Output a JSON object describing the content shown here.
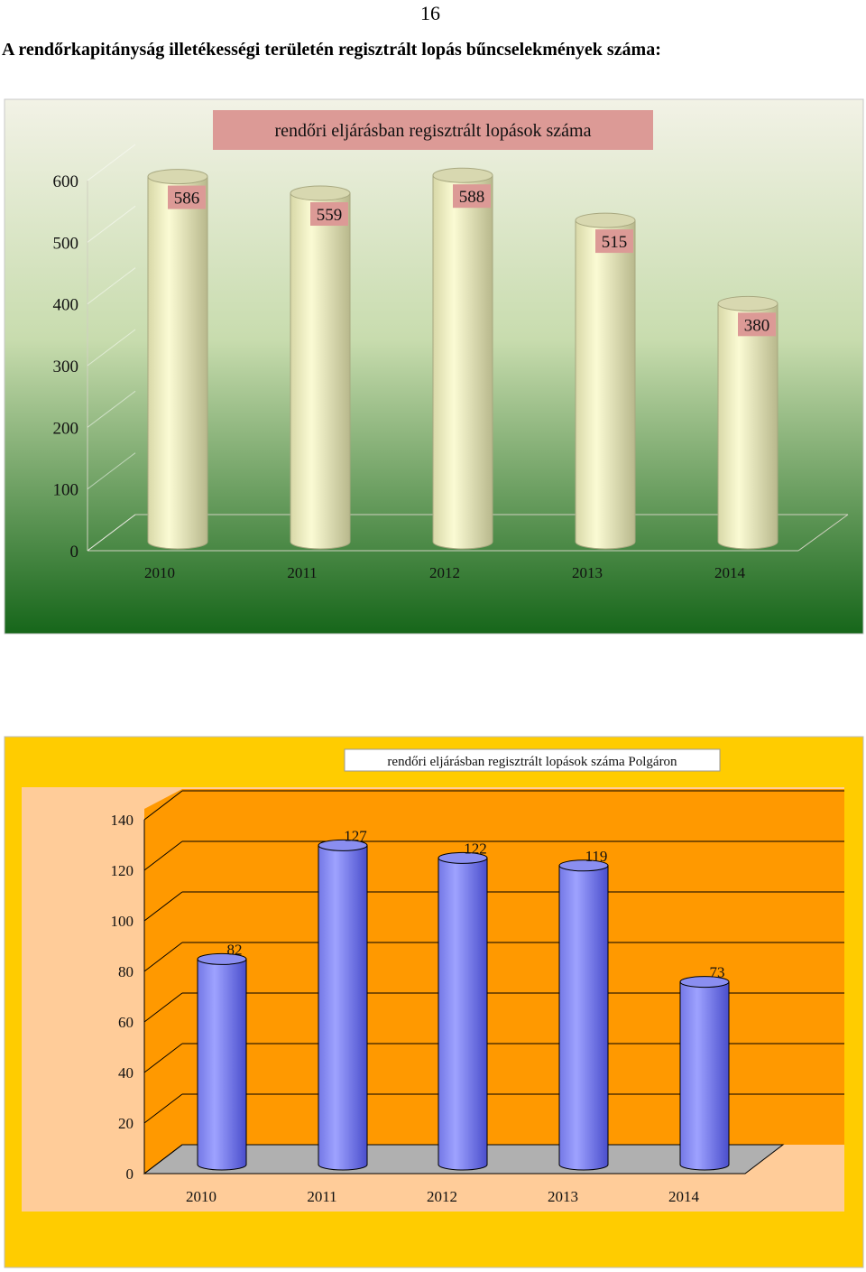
{
  "page": {
    "number": "16",
    "heading": "A rendőrkapitányság illetékességi területén regisztrált lopás bűncselekmények száma:"
  },
  "colors": {
    "chart1_bg_top": "#f2f2e6",
    "chart1_bg_bottom": "#16661a",
    "chart1_bar_light": "#fbfbd4",
    "chart1_bar_dark": "#b8b88c",
    "chart1_label_bg": "#dc9a96",
    "chart2_outer": "#ffcc00",
    "chart2_plot": "#ff9900",
    "chart2_wall_light": "#ffcc99",
    "chart2_bar_light": "#9ea2ff",
    "chart2_bar_dark": "#4a4ecc"
  },
  "chart_data": [
    {
      "type": "bar",
      "title": "rendőri eljárásban regisztrált lopások száma",
      "categories": [
        "2010",
        "2011",
        "2012",
        "2013",
        "2014"
      ],
      "values": [
        586,
        559,
        588,
        515,
        380
      ],
      "yticks": [
        0,
        100,
        200,
        300,
        400,
        500,
        600
      ],
      "ylim": [
        0,
        600
      ],
      "legend": "none",
      "grid": false
    },
    {
      "type": "bar",
      "title": "rendőri eljárásban regisztrált lopások száma Polgáron",
      "categories": [
        "2010",
        "2011",
        "2012",
        "2013",
        "2014"
      ],
      "values": [
        82,
        127,
        122,
        119,
        73
      ],
      "yticks": [
        0,
        20,
        40,
        60,
        80,
        100,
        120,
        140
      ],
      "ylim": [
        0,
        140
      ],
      "legend": "none",
      "grid": true
    }
  ]
}
